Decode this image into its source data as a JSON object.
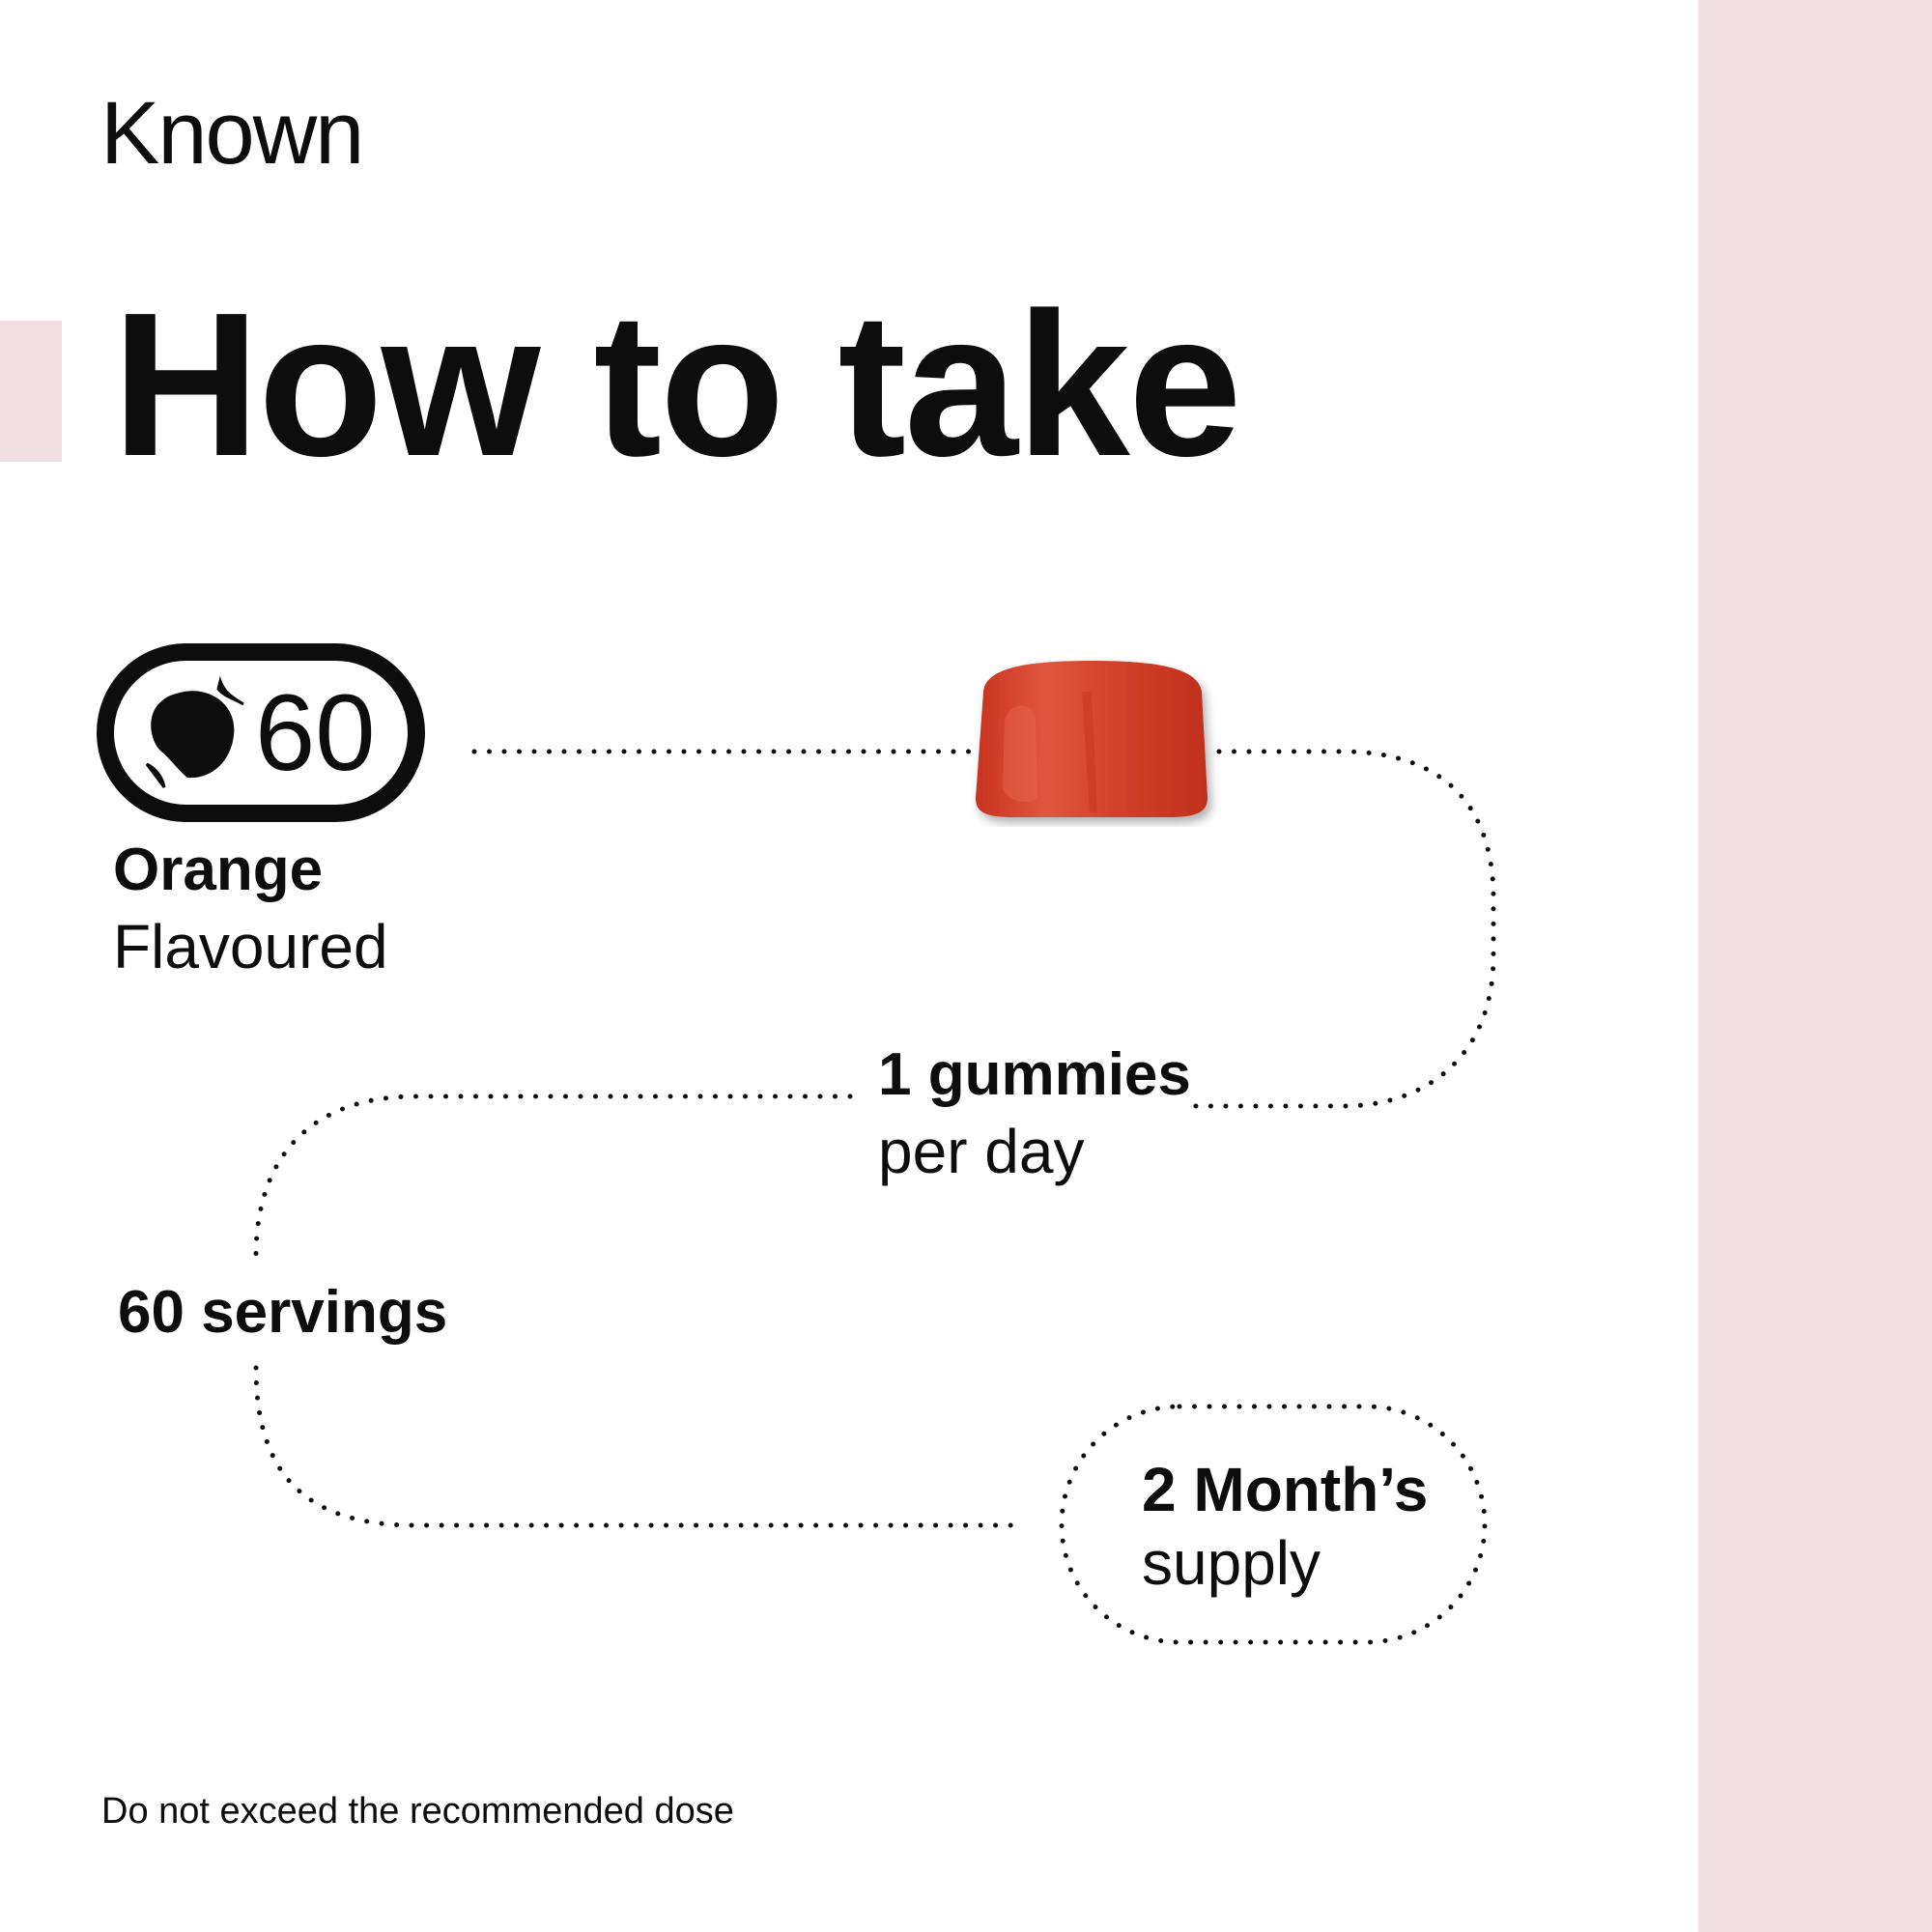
{
  "brand": {
    "logo": "Known"
  },
  "heading": "How to take",
  "badge": {
    "icon": "orange-fruit-icon",
    "count": "60"
  },
  "flavour": {
    "name": "Orange",
    "label": "Flavoured"
  },
  "dosage": {
    "amount": "1 gummies",
    "frequency": "per day"
  },
  "servings": "60 servings",
  "supply": {
    "duration": "2 Month’s",
    "label": "supply"
  },
  "footer_note": "Do not exceed the recommended dose",
  "colors": {
    "accent_pink": "#f2dfe3",
    "gummy": "#d9412e",
    "text": "#0d0d0d"
  }
}
